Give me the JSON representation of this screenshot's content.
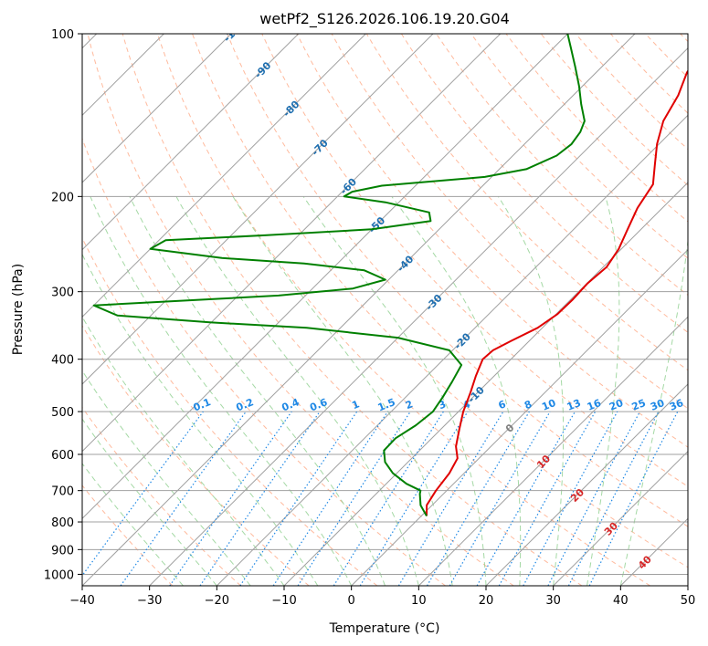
{
  "chart_data": {
    "type": "line",
    "subtype": "skew-t log-p",
    "title": "wetPf2_S126.2026.106.19.20.G04",
    "xlabel": "Temperature (°C)",
    "ylabel": "Pressure (hPa)",
    "xlim": [
      -40,
      50
    ],
    "ylim": [
      1050,
      100
    ],
    "y_scale": "log",
    "grid": true,
    "x_ticks": [
      -40,
      -30,
      -20,
      -10,
      0,
      10,
      20,
      30,
      40,
      50
    ],
    "y_ticks": [
      100,
      200,
      300,
      400,
      500,
      600,
      700,
      800,
      900,
      1000
    ],
    "background_lines": {
      "skew_isotherm_step": 10,
      "dry_adiabat_step": 10,
      "moist_adiabat_step": 5,
      "mixing_ratio_values": [
        0.1,
        0.2,
        0.4,
        0.6,
        1,
        1.5,
        2,
        3,
        4,
        6,
        8,
        10,
        13,
        16,
        20,
        25,
        30,
        36
      ],
      "mixing_ratio_labels": [
        "0.1",
        "0.2",
        "0.4",
        "0.6",
        "1",
        "1.5",
        "2",
        "3",
        "4",
        "6",
        "8",
        "10",
        "13",
        "16",
        "20",
        "25",
        "30",
        "36"
      ],
      "isotherm_labels": [
        "-100",
        "-90",
        "-80",
        "-70",
        "-60",
        "-50",
        "-40",
        "-30",
        "-20",
        "-10",
        "0",
        "10",
        "20",
        "30",
        "40"
      ],
      "colors": {
        "isotherm": "#a0a0a0",
        "dry_adiabat": "#ffa37c",
        "moist_adiabat": "#8fcf8f",
        "mixing_ratio": "#1e88e5",
        "isobar": "#a0a0a0",
        "isotherm_label_cold": "#1f6fb0",
        "isotherm_label_zero": "#808080",
        "isotherm_label_warm": "#d62728"
      }
    },
    "series": [
      {
        "color": "#e00000",
        "points": [
          {
            "p": 780,
            "t": 0.8
          },
          {
            "p": 745,
            "t": -0.8
          },
          {
            "p": 700,
            "t": -1.6
          },
          {
            "p": 650,
            "t": -2.2
          },
          {
            "p": 610,
            "t": -3.2
          },
          {
            "p": 580,
            "t": -5.2
          },
          {
            "p": 540,
            "t": -7.2
          },
          {
            "p": 500,
            "t": -9.3
          },
          {
            "p": 460,
            "t": -11.1
          },
          {
            "p": 430,
            "t": -12.7
          },
          {
            "p": 400,
            "t": -14.2
          },
          {
            "p": 385,
            "t": -14.0
          },
          {
            "p": 370,
            "t": -12.7
          },
          {
            "p": 350,
            "t": -10.7
          },
          {
            "p": 330,
            "t": -9.8
          },
          {
            "p": 310,
            "t": -9.7
          },
          {
            "p": 290,
            "t": -9.9
          },
          {
            "p": 270,
            "t": -9.5
          },
          {
            "p": 250,
            "t": -10.4
          },
          {
            "p": 230,
            "t": -12.0
          },
          {
            "p": 210,
            "t": -13.7
          },
          {
            "p": 190,
            "t": -14.9
          },
          {
            "p": 175,
            "t": -17.5
          },
          {
            "p": 160,
            "t": -20.3
          },
          {
            "p": 145,
            "t": -22.8
          },
          {
            "p": 130,
            "t": -24.4
          },
          {
            "p": 118,
            "t": -26.5
          },
          {
            "p": 108,
            "t": -27.5
          },
          {
            "p": 100,
            "t": -28.3
          }
        ]
      },
      {
        "color": "#008000",
        "points": [
          {
            "p": 780,
            "t": 0.8
          },
          {
            "p": 745,
            "t": -1.7
          },
          {
            "p": 710,
            "t": -3.5
          },
          {
            "p": 700,
            "t": -3.9
          },
          {
            "p": 680,
            "t": -7.0
          },
          {
            "p": 650,
            "t": -10.6
          },
          {
            "p": 620,
            "t": -13.4
          },
          {
            "p": 590,
            "t": -15.3
          },
          {
            "p": 560,
            "t": -15.4
          },
          {
            "p": 530,
            "t": -14.3
          },
          {
            "p": 500,
            "t": -13.8
          },
          {
            "p": 470,
            "t": -14.5
          },
          {
            "p": 440,
            "t": -15.4
          },
          {
            "p": 410,
            "t": -16.5
          },
          {
            "p": 385,
            "t": -20.5
          },
          {
            "p": 365,
            "t": -30.0
          },
          {
            "p": 350,
            "t": -45.0
          },
          {
            "p": 342,
            "t": -60.0
          },
          {
            "p": 332,
            "t": -75.0
          },
          {
            "p": 318,
            "t": -80.0
          },
          {
            "p": 312,
            "t": -68.0
          },
          {
            "p": 305,
            "t": -54.0
          },
          {
            "p": 296,
            "t": -44.0
          },
          {
            "p": 285,
            "t": -40.5
          },
          {
            "p": 274,
            "t": -45.0
          },
          {
            "p": 266,
            "t": -55.0
          },
          {
            "p": 260,
            "t": -68.0
          },
          {
            "p": 250,
            "t": -80.0
          },
          {
            "p": 241,
            "t": -79.0
          },
          {
            "p": 236,
            "t": -65.0
          },
          {
            "p": 230,
            "t": -50.0
          },
          {
            "p": 222,
            "t": -42.5
          },
          {
            "p": 214,
            "t": -44.0
          },
          {
            "p": 205,
            "t": -52.0
          },
          {
            "p": 200,
            "t": -59.0
          },
          {
            "p": 196,
            "t": -58.5
          },
          {
            "p": 191,
            "t": -55.0
          },
          {
            "p": 188,
            "t": -49.0
          },
          {
            "p": 184,
            "t": -41.0
          },
          {
            "p": 178,
            "t": -36.0
          },
          {
            "p": 168,
            "t": -33.5
          },
          {
            "p": 160,
            "t": -33.0
          },
          {
            "p": 152,
            "t": -33.5
          },
          {
            "p": 145,
            "t": -34.5
          },
          {
            "p": 135,
            "t": -37.5
          },
          {
            "p": 125,
            "t": -40.5
          },
          {
            "p": 115,
            "t": -44.0
          },
          {
            "p": 106,
            "t": -47.5
          },
          {
            "p": 100,
            "t": -50.0
          }
        ]
      }
    ]
  }
}
